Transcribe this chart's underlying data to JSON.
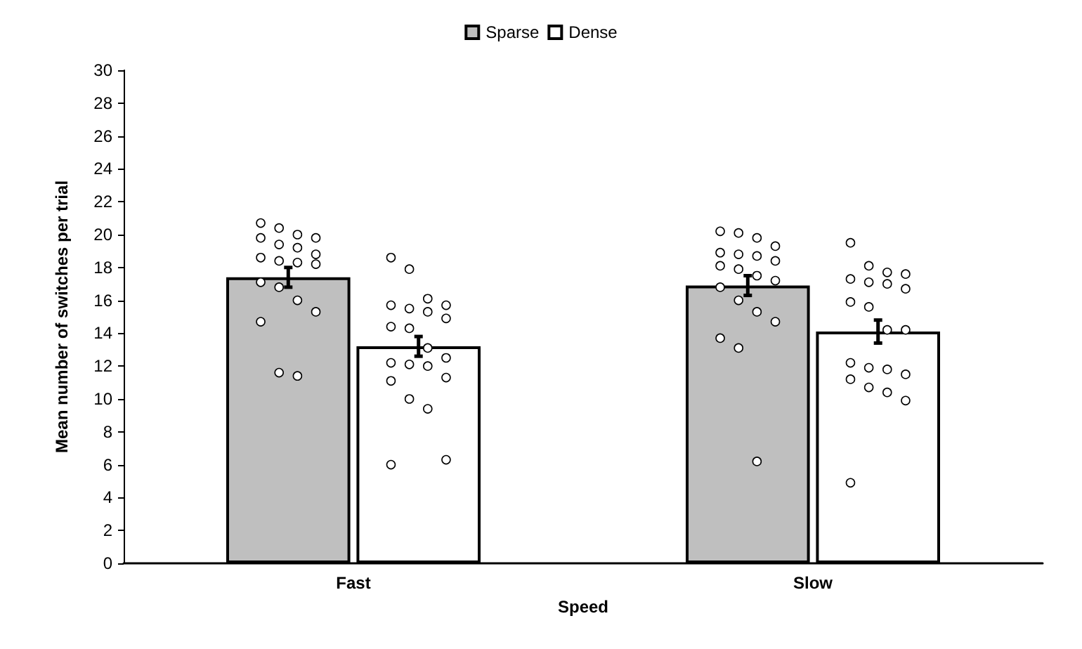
{
  "chart_data": {
    "type": "bar",
    "xlabel": "Speed",
    "ylabel": "Mean number of switches per trial",
    "categories": [
      "Fast",
      "Slow"
    ],
    "ylim": [
      0,
      30
    ],
    "yticks": [
      0,
      2,
      4,
      6,
      8,
      10,
      12,
      14,
      16,
      18,
      20,
      22,
      24,
      26,
      28,
      30
    ],
    "grid": false,
    "legend": "top",
    "series": [
      {
        "name": "Sparse",
        "color": "#bfbfbf",
        "values": [
          17.4,
          16.9
        ],
        "errors": [
          0.6,
          0.6
        ]
      },
      {
        "name": "Dense",
        "color": "#ffffff",
        "values": [
          13.2,
          14.1
        ],
        "errors": [
          0.6,
          0.7
        ]
      },
      {
        "type": "scatter",
        "color": "#ffffff",
        "marker": "circle",
        "x": [
          "Fast",
          "Fast",
          "Fast",
          "Fast",
          "Fast",
          "Fast",
          "Fast",
          "Fast",
          "Fast",
          "Fast",
          "Fast",
          "Fast",
          "Fast",
          "Fast",
          "Fast",
          "Fast",
          "Fast",
          "Fast",
          "Fast",
          "Slow",
          "Slow",
          "Slow",
          "Slow",
          "Slow",
          "Slow",
          "Slow",
          "Slow",
          "Slow",
          "Slow",
          "Slow",
          "Slow",
          "Slow",
          "Slow",
          "Slow",
          "Slow",
          "Slow",
          "Slow",
          "Slow"
        ],
        "values": [
          20.7,
          20.4,
          20.0,
          19.8,
          19.8,
          19.4,
          19.2,
          18.8,
          18.6,
          18.4,
          18.3,
          18.2,
          17.1,
          16.8,
          16.0,
          15.3,
          14.7,
          11.6,
          11.4,
          20.2,
          20.1,
          19.8,
          19.3,
          18.9,
          18.8,
          18.7,
          18.4,
          18.1,
          17.9,
          17.5,
          17.2,
          16.8,
          16.0,
          15.3,
          14.7,
          13.7,
          13.1,
          6.2
        ]
      },
      {
        "type": "scatter",
        "color": "#ffffff",
        "marker": "circle",
        "x": [
          "Fast",
          "Fast",
          "Fast",
          "Fast",
          "Fast",
          "Fast",
          "Fast",
          "Fast",
          "Fast",
          "Fast",
          "Fast",
          "Fast",
          "Fast",
          "Fast",
          "Fast",
          "Fast",
          "Fast",
          "Fast",
          "Fast",
          "Fast",
          "Fast",
          "Slow",
          "Slow",
          "Slow",
          "Slow",
          "Slow",
          "Slow",
          "Slow",
          "Slow",
          "Slow",
          "Slow",
          "Slow",
          "Slow",
          "Slow",
          "Slow",
          "Slow",
          "Slow",
          "Slow",
          "Slow",
          "Slow",
          "Slow",
          "Slow"
        ],
        "values": [
          18.6,
          17.9,
          16.1,
          15.7,
          15.7,
          15.5,
          15.3,
          14.9,
          14.4,
          14.3,
          13.1,
          12.5,
          12.2,
          12.1,
          12.0,
          11.3,
          11.1,
          10.0,
          9.4,
          6.3,
          6.0,
          19.5,
          18.1,
          17.7,
          17.6,
          17.3,
          17.1,
          17.0,
          16.7,
          15.9,
          15.6,
          14.2,
          14.2,
          12.2,
          11.9,
          11.8,
          11.5,
          11.2,
          10.7,
          10.4,
          9.9,
          4.9
        ]
      }
    ]
  }
}
